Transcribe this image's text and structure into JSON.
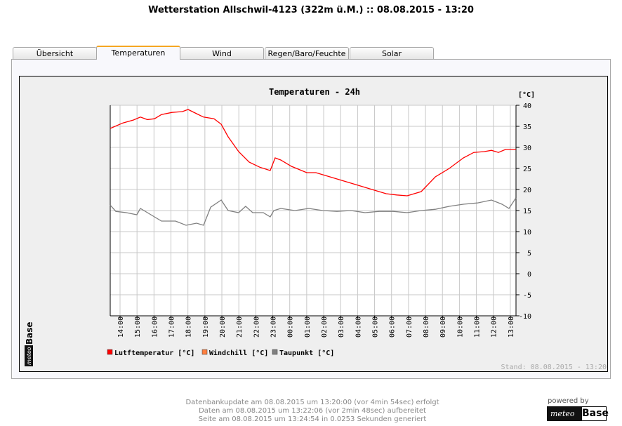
{
  "header": {
    "title": "Wetterstation Allschwil-4123 (322m ü.M.) :: 08.08.2015 - 13:20"
  },
  "tabs": [
    {
      "label": "Übersicht"
    },
    {
      "label": "Temperaturen"
    },
    {
      "label": "Wind"
    },
    {
      "label": "Regen/Baro/Feuchte"
    },
    {
      "label": "Solar"
    }
  ],
  "chart_data": {
    "type": "line",
    "title": "Temperaturen - 24h",
    "ylabel": "[°C]",
    "ylim": [
      -10,
      40
    ],
    "yticks": [
      -10,
      -5,
      0,
      5,
      10,
      15,
      20,
      25,
      30,
      35,
      40
    ],
    "xlabel": "",
    "x_unit": "hours since 14:00 (07.08.2015)",
    "xlim": [
      -0.58,
      23.33
    ],
    "xticks": [
      "14:00",
      "15:00",
      "16:00",
      "17:00",
      "18:00",
      "19:00",
      "20:00",
      "21:00",
      "22:00",
      "23:00",
      "00:00",
      "01:00",
      "02:00",
      "03:00",
      "04:00",
      "05:00",
      "06:00",
      "07:00",
      "08:00",
      "09:00",
      "10:00",
      "11:00",
      "12:00",
      "13:00"
    ],
    "grid": true,
    "legend_position": "bottom-left",
    "series": [
      {
        "name": "Lutftemperatur [°C]",
        "color": "#ff0000",
        "x": [
          -0.58,
          0.17,
          0.79,
          1.2,
          1.61,
          2.03,
          2.44,
          3.06,
          3.68,
          4.01,
          4.51,
          4.92,
          5.54,
          5.96,
          6.37,
          6.99,
          7.61,
          8.23,
          8.85,
          9.14,
          9.47,
          10.1,
          11.0,
          11.54,
          12.37,
          13.2,
          14.03,
          14.85,
          15.68,
          16.3,
          16.92,
          17.75,
          18.58,
          19.4,
          20.23,
          20.85,
          21.47,
          21.89,
          22.3,
          22.71,
          23.33
        ],
        "y": [
          34.5,
          35.8,
          36.5,
          37.2,
          36.6,
          36.8,
          37.8,
          38.3,
          38.5,
          39.0,
          38.0,
          37.2,
          36.8,
          35.5,
          32.5,
          29.0,
          26.5,
          25.3,
          24.5,
          27.5,
          27.0,
          25.5,
          24.0,
          24.0,
          23.0,
          22.0,
          21.0,
          20.0,
          19.0,
          18.7,
          18.5,
          19.5,
          23.0,
          25.0,
          27.5,
          28.8,
          29.0,
          29.3,
          28.8,
          29.5,
          29.5
        ]
      },
      {
        "name": "Windchill [°C]",
        "color": "#ff8040",
        "x": [],
        "y": []
      },
      {
        "name": "Taupunkt [°C]",
        "color": "#808080",
        "x": [
          -0.58,
          -0.25,
          0.37,
          0.99,
          1.2,
          1.82,
          2.44,
          3.27,
          3.89,
          4.51,
          4.92,
          5.34,
          5.96,
          6.37,
          6.99,
          7.4,
          7.82,
          8.44,
          8.85,
          9.06,
          9.47,
          10.3,
          11.12,
          11.95,
          12.78,
          13.61,
          14.44,
          15.27,
          16.09,
          16.92,
          17.75,
          18.58,
          19.4,
          20.23,
          21.06,
          21.89,
          22.51,
          22.92,
          23.33
        ],
        "y": [
          16.3,
          14.8,
          14.5,
          14.0,
          15.5,
          14.0,
          12.5,
          12.5,
          11.5,
          12.0,
          11.5,
          15.8,
          17.5,
          15.0,
          14.5,
          16.0,
          14.5,
          14.5,
          13.5,
          15.0,
          15.5,
          15.0,
          15.5,
          15.0,
          14.8,
          15.0,
          14.5,
          14.8,
          14.8,
          14.5,
          15.0,
          15.3,
          16.0,
          16.5,
          16.8,
          17.5,
          16.5,
          15.5,
          18.0
        ]
      }
    ],
    "stand": "Stand: 08.08.2015 - 13:20"
  },
  "logo": {
    "brand_small": "meteo",
    "brand_big": "Base"
  },
  "footer": {
    "line1": "Datenbankupdate am 08.08.2015 um 13:20:00 (vor 4min 54sec) erfolgt",
    "line2": "Daten am 08.08.2015 um 13:22:06 (vor 2min 48sec) aufbereitet",
    "line3": "Seite am 08.08.2015 um 13:24:54 in 0.0253 Sekunden generiert",
    "powered": "powered by"
  }
}
